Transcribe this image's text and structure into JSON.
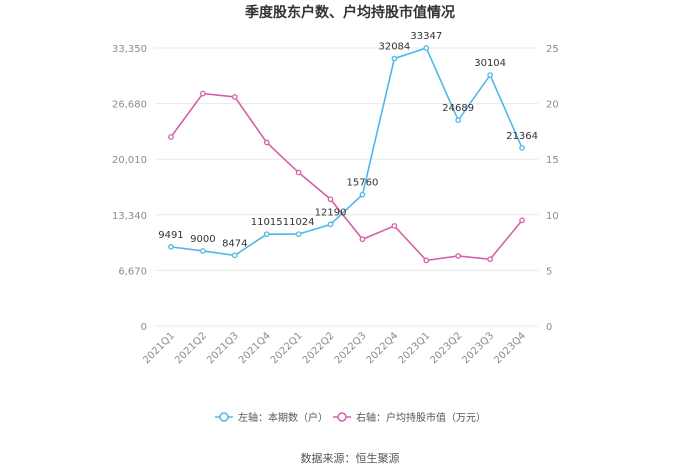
{
  "chart_data": {
    "type": "line",
    "title": "季度股东户数、户均持股市值情况",
    "categories": [
      "2021Q1",
      "2021Q2",
      "2021Q3",
      "2021Q4",
      "2022Q1",
      "2022Q2",
      "2022Q3",
      "2022Q4",
      "2023Q1",
      "2023Q2",
      "2023Q3",
      "2023Q4"
    ],
    "series": [
      {
        "name": "左轴：本期数（户）",
        "axis": "left",
        "color": "#4fb8e6",
        "values": [
          9491,
          9000,
          8474,
          11015,
          11024,
          12190,
          15760,
          32084,
          33347,
          24689,
          30104,
          21364
        ],
        "labels": [
          "9491",
          "9000",
          "8474",
          "11015",
          "11024",
          "12190",
          "15760",
          "32084",
          "33347",
          "24689",
          "30104",
          "21364"
        ]
      },
      {
        "name": "右轴：户均持股市值（万元）",
        "axis": "right",
        "color": "#d660a8",
        "values": [
          17.0,
          20.9,
          20.6,
          16.5,
          13.8,
          11.4,
          7.8,
          9.0,
          5.9,
          6.3,
          6.0,
          9.5
        ]
      }
    ],
    "y_left": {
      "ylim": [
        0,
        33350
      ],
      "ticks": [
        "0",
        "6,670",
        "13,340",
        "20,010",
        "26,680",
        "33,350"
      ]
    },
    "y_right": {
      "ylim": [
        0,
        25
      ],
      "ticks": [
        "0",
        "5",
        "10",
        "15",
        "20",
        "25"
      ]
    },
    "grid": true,
    "legend": "bottom-center"
  },
  "source": "数据来源：恒生聚源"
}
